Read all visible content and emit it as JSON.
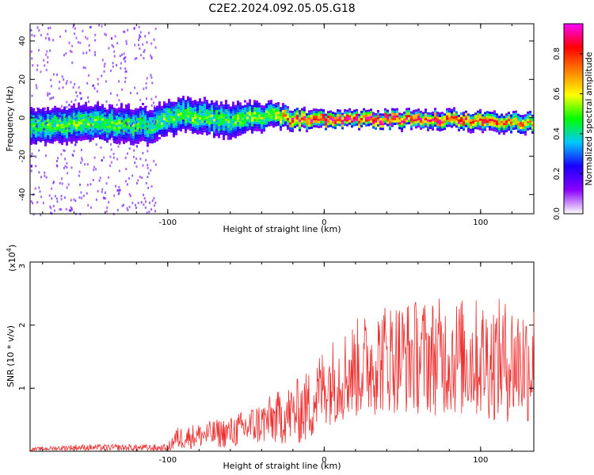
{
  "title": "C2E2.2024.092.05.05.G18",
  "chart_data": [
    {
      "type": "heatmap",
      "xlabel": "Height of straight line (km)",
      "ylabel": "Frequency (Hz)",
      "xlim": [
        -188,
        134
      ],
      "ylim": [
        -50,
        49
      ],
      "xticks": [
        -100,
        0,
        100
      ],
      "yticks": [
        -40,
        -20,
        0,
        20,
        40
      ],
      "grid": false,
      "colorbar": {
        "label": "Normalized spectral amplitude",
        "range": [
          0.0,
          0.95
        ],
        "ticks": [
          0.0,
          0.2,
          0.4,
          0.6,
          0.8
        ],
        "colormap": [
          "#ffffff",
          "#8a00ff",
          "#1a00ff",
          "#00c8ff",
          "#00ff00",
          "#ffff00",
          "#ff8000",
          "#ff0000",
          "#ff00ff"
        ]
      },
      "ridge": [
        {
          "x": -188,
          "freq": -5,
          "width": 5.5,
          "amp": 0.45
        },
        {
          "x": -150,
          "freq": -3,
          "width": 5.5,
          "amp": 0.48
        },
        {
          "x": -110,
          "freq": -4,
          "width": 5.5,
          "amp": 0.45
        },
        {
          "x": -90,
          "freq": 2,
          "width": 5.0,
          "amp": 0.5
        },
        {
          "x": -60,
          "freq": -2,
          "width": 5.5,
          "amp": 0.45
        },
        {
          "x": -30,
          "freq": 2,
          "width": 3.5,
          "amp": 0.55
        },
        {
          "x": -20,
          "freq": -1,
          "width": 2.8,
          "amp": 0.8
        },
        {
          "x": 0,
          "freq": -1,
          "width": 2.2,
          "amp": 0.88
        },
        {
          "x": 40,
          "freq": -1,
          "width": 2.2,
          "amp": 0.85
        },
        {
          "x": 80,
          "freq": -1,
          "width": 2.4,
          "amp": 0.8
        },
        {
          "x": 134,
          "freq": -3,
          "width": 2.8,
          "amp": 0.65
        }
      ]
    },
    {
      "type": "line",
      "xlabel": "Height of straight line (km)",
      "ylabel": "SNR (10 * v/v)",
      "yscale_label": "(x10",
      "yscale_exp": "4",
      "yscale_close": ")",
      "xlim": [
        -188,
        134
      ],
      "ylim": [
        0,
        30000
      ],
      "xticks": [
        -100,
        0,
        100
      ],
      "ytick_values": [
        10000,
        20000,
        30000
      ],
      "ytick_labels": [
        "1",
        "2",
        "3"
      ],
      "color": "#ee3030",
      "grid": false,
      "envelope": [
        {
          "x": -188,
          "mean": 300,
          "spread": 250
        },
        {
          "x": -160,
          "mean": 600,
          "spread": 500
        },
        {
          "x": -100,
          "mean": 500,
          "spread": 600
        },
        {
          "x": -95,
          "mean": 2000,
          "spread": 1800
        },
        {
          "x": -80,
          "mean": 2500,
          "spread": 2000
        },
        {
          "x": -60,
          "mean": 3000,
          "spread": 2500
        },
        {
          "x": -40,
          "mean": 4500,
          "spread": 3500
        },
        {
          "x": -20,
          "mean": 6000,
          "spread": 5000
        },
        {
          "x": -10,
          "mean": 7000,
          "spread": 6000
        },
        {
          "x": 0,
          "mean": 10500,
          "spread": 6500
        },
        {
          "x": 20,
          "mean": 13000,
          "spread": 8000
        },
        {
          "x": 40,
          "mean": 15000,
          "spread": 9000
        },
        {
          "x": 80,
          "mean": 15000,
          "spread": 9500
        },
        {
          "x": 134,
          "mean": 14000,
          "spread": 10000
        }
      ]
    }
  ]
}
